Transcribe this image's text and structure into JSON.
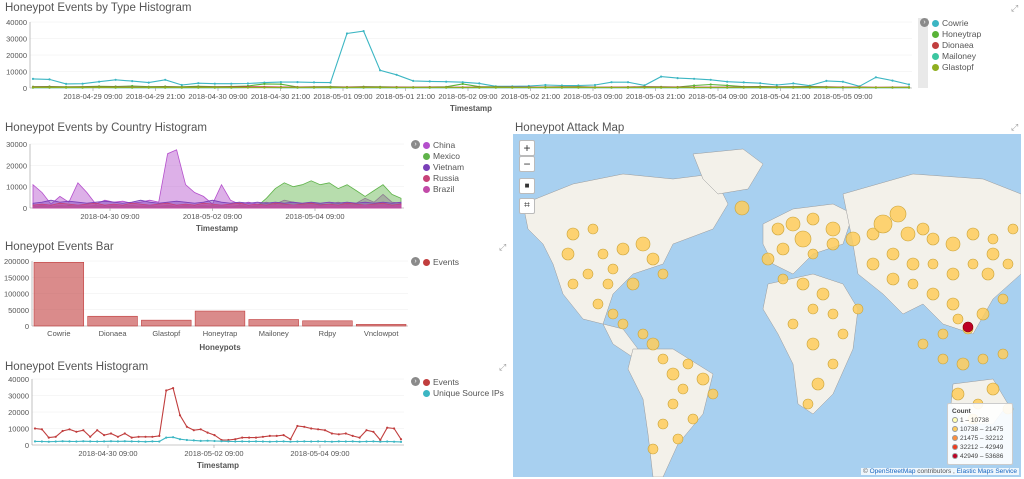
{
  "panels": {
    "type_hist": {
      "title": "Honeypot Events by Type Histogram",
      "legend": [
        {
          "label": "Cowrie",
          "color": "#3cb6c3"
        },
        {
          "label": "Honeytrap",
          "color": "#59b337"
        },
        {
          "label": "Dionaea",
          "color": "#c13e3e"
        },
        {
          "label": "Mailoney",
          "color": "#3cc6a0"
        },
        {
          "label": "Glastopf",
          "color": "#8fae1f"
        }
      ]
    },
    "country_hist": {
      "title": "Honeypot Events by Country Histogram",
      "legend": [
        {
          "label": "China",
          "color": "#b44fcc"
        },
        {
          "label": "Mexico",
          "color": "#5fb34a"
        },
        {
          "label": "Vietnam",
          "color": "#7a3fb8"
        },
        {
          "label": "Russia",
          "color": "#c74278"
        },
        {
          "label": "Brazil",
          "color": "#c24ba8"
        }
      ]
    },
    "events_bar": {
      "title": "Honeypot Events Bar",
      "legend": [
        {
          "label": "Events",
          "color": "#c13e3e"
        }
      ]
    },
    "events_hist": {
      "title": "Honeypot Events Histogram",
      "legend": [
        {
          "label": "Events",
          "color": "#c13e3e"
        },
        {
          "label": "Unique Source IPs",
          "color": "#3cb6c3"
        }
      ]
    },
    "attack_map": {
      "title": "Honeypot Attack Map",
      "controls": {
        "zoom_in": "+",
        "zoom_out": "−",
        "draw": "■",
        "fit": "⌗"
      },
      "legend_title": "Count",
      "legend": [
        {
          "label": "1 – 10738",
          "color": "#ffffb2"
        },
        {
          "label": "10738 – 21475",
          "color": "#fecc5c"
        },
        {
          "label": "21475 – 32212",
          "color": "#fd8d3c"
        },
        {
          "label": "32212 – 42949",
          "color": "#f03b20"
        },
        {
          "label": "42949 – 53686",
          "color": "#bd0026"
        }
      ],
      "attribution": {
        "prefix": "©",
        "osm": "OpenStreetMap",
        "mid": "contributors ,",
        "ems": "Elastic Maps Service"
      }
    }
  },
  "chart_data": [
    {
      "type": "line",
      "title": "Honeypot Events by Type Histogram",
      "xlabel": "Timestamp",
      "ylabel": "",
      "ylim": [
        0,
        40000
      ],
      "yticks": [
        "40000",
        "30000",
        "20000",
        "10000",
        "0"
      ],
      "xticks": [
        "2018-04-29 09:00",
        "2018-04-29 21:00",
        "2018-04-30 09:00",
        "2018-04-30 21:00",
        "2018-05-01 09:00",
        "2018-05-01 21:00",
        "2018-05-02 09:00",
        "2018-05-02 21:00",
        "2018-05-03 09:00",
        "2018-05-03 21:00",
        "2018-05-04 09:00",
        "2018-05-04 21:00",
        "2018-05-05 09:00"
      ],
      "series": [
        {
          "name": "Cowrie",
          "values": [
            5500,
            5200,
            2500,
            2600,
            3800,
            5000,
            4200,
            3300,
            5000,
            1800,
            2900,
            2600,
            2600,
            2700,
            3300,
            3600,
            3600,
            3400,
            3300,
            33000,
            34500,
            10700,
            8000,
            4300,
            4000,
            3800,
            3500,
            2800,
            1000,
            1000,
            1200,
            1800,
            1500,
            1500,
            1800,
            3500,
            3500,
            1600,
            6900,
            6000,
            5600,
            5000,
            3800,
            3400,
            2900,
            1800,
            2800,
            1400,
            4300,
            3800,
            1000,
            6500,
            4500,
            2100
          ]
        },
        {
          "name": "Honeytrap",
          "values": [
            800,
            900,
            700,
            800,
            1000,
            900,
            1200,
            800,
            900,
            700,
            1000,
            800,
            900,
            1200,
            2500,
            2300,
            600,
            700,
            800,
            600,
            800,
            700,
            600,
            500,
            600,
            700,
            2500,
            800,
            700,
            600,
            500,
            600,
            700,
            800,
            500,
            400,
            600,
            800,
            700,
            600,
            1500,
            2100,
            1600,
            800,
            900,
            700,
            800,
            900,
            700,
            500,
            600,
            300,
            400,
            500
          ]
        },
        {
          "name": "Dionaea",
          "values": [
            500,
            500,
            400,
            500,
            600,
            500,
            500,
            400,
            500,
            400,
            500,
            500,
            600,
            700,
            700,
            600,
            500,
            500,
            400,
            500,
            500,
            400,
            500,
            400,
            500,
            400,
            500,
            500,
            400,
            500,
            500,
            400,
            500,
            500,
            400,
            500,
            500,
            600,
            500,
            500,
            500,
            500,
            500,
            500,
            500,
            500,
            500,
            500,
            500,
            500,
            500,
            400,
            400,
            400
          ]
        },
        {
          "name": "Mailoney",
          "values": [
            200,
            200,
            200,
            200,
            300,
            200,
            200,
            200,
            200,
            200,
            200,
            200,
            200,
            300,
            300,
            200,
            200,
            200,
            200,
            200,
            200,
            200,
            200,
            200,
            200,
            200,
            200,
            200,
            200,
            200,
            200,
            200,
            200,
            200,
            200,
            200,
            200,
            200,
            200,
            200,
            200,
            200,
            200,
            200,
            200,
            200,
            200,
            200,
            200,
            200,
            200,
            200,
            200,
            200
          ]
        },
        {
          "name": "Glastopf",
          "values": [
            300,
            300,
            300,
            300,
            400,
            300,
            300,
            300,
            300,
            300,
            300,
            300,
            300,
            300,
            300,
            300,
            300,
            300,
            300,
            300,
            300,
            300,
            300,
            300,
            300,
            300,
            300,
            300,
            300,
            300,
            300,
            300,
            300,
            300,
            300,
            300,
            300,
            300,
            300,
            300,
            300,
            300,
            300,
            300,
            300,
            300,
            300,
            300,
            300,
            300,
            300,
            300,
            300,
            300
          ]
        }
      ]
    },
    {
      "type": "area",
      "title": "Honeypot Events by Country Histogram",
      "xlabel": "Timestamp",
      "ylabel": "",
      "ylim": [
        0,
        33000
      ],
      "yticks": [
        "30000",
        "20000",
        "10000",
        "0"
      ],
      "xticks": [
        "2018-04-30 09:00",
        "2018-05-02 09:00",
        "2018-05-04 09:00"
      ],
      "series": [
        {
          "name": "China",
          "values": [
            12000,
            8000,
            2000,
            6000,
            3000,
            13000,
            8000,
            2000,
            4000,
            3000,
            3500,
            2500,
            3000,
            4000,
            3000,
            28000,
            30000,
            12000,
            8000,
            6000,
            2000,
            12000,
            4000,
            2000,
            3000,
            2000,
            3000,
            2000,
            4000,
            3000,
            2000,
            2500,
            2000,
            2000,
            3000,
            2000,
            2500,
            5000,
            3000,
            7000,
            3000,
            2500
          ]
        },
        {
          "name": "Mexico",
          "values": [
            1000,
            1200,
            1100,
            1000,
            1300,
            1200,
            1000,
            1200,
            1100,
            1000,
            1200,
            1100,
            1000,
            1200,
            1000,
            1100,
            1000,
            1200,
            1100,
            1000,
            1200,
            1100,
            1000,
            1200,
            1100,
            1000,
            5000,
            10000,
            13000,
            11000,
            12000,
            14000,
            12000,
            13000,
            10000,
            12000,
            9000,
            6000,
            9000,
            12000,
            7000,
            5000
          ]
        },
        {
          "name": "Vietnam",
          "values": [
            2500,
            3000,
            4000,
            3000,
            3500,
            3000,
            2500,
            3000,
            3500,
            3000,
            2500,
            3000,
            4000,
            3000,
            2500,
            3000,
            3500,
            3000,
            2500,
            3000,
            4000,
            3000,
            2500,
            3000,
            2500,
            3000,
            2500,
            3000,
            2500,
            3000,
            2500,
            3000,
            2500,
            3000,
            2500,
            3000,
            2500,
            3000,
            2500,
            3000,
            2500,
            3000
          ]
        },
        {
          "name": "Russia",
          "values": [
            1500,
            2000,
            1500,
            2500,
            2000,
            1500,
            2000,
            2500,
            1500,
            2000,
            1500,
            2500,
            2000,
            1500,
            2000,
            2500,
            1500,
            2000,
            1500,
            2500,
            2000,
            1500,
            2000,
            2500,
            1500,
            2000,
            1500,
            2500,
            2000,
            1500,
            2000,
            2500,
            1500,
            2000,
            1500,
            2500,
            2000,
            1500,
            2000,
            2500,
            1500,
            2000
          ]
        },
        {
          "name": "Brazil",
          "values": [
            1000,
            1500,
            1000,
            1500,
            1000,
            1500,
            1000,
            1500,
            1000,
            1500,
            1000,
            1500,
            1000,
            1500,
            1000,
            1500,
            1000,
            1500,
            1000,
            1500,
            1000,
            1500,
            1000,
            1500,
            1000,
            1500,
            1000,
            1500,
            1000,
            1500,
            1000,
            1500,
            1000,
            1500,
            1000,
            1500,
            1000,
            1500,
            1000,
            1500,
            1000,
            1500
          ]
        }
      ]
    },
    {
      "type": "bar",
      "title": "Honeypot Events Bar",
      "xlabel": "Honeypots",
      "ylabel": "",
      "ylim": [
        0,
        200000
      ],
      "yticks": [
        "200000",
        "150000",
        "100000",
        "50000",
        "0"
      ],
      "categories": [
        "Cowrie",
        "Dionaea",
        "Glastopf",
        "Honeytrap",
        "Mailoney",
        "Rdpy",
        "Vnclowpot"
      ],
      "series": [
        {
          "name": "Events",
          "values": [
            196000,
            30000,
            18000,
            46000,
            20000,
            16000,
            5000
          ]
        }
      ]
    },
    {
      "type": "line",
      "title": "Honeypot Events Histogram",
      "xlabel": "Timestamp",
      "ylabel": "",
      "ylim": [
        0,
        40000
      ],
      "yticks": [
        "40000",
        "30000",
        "20000",
        "10000",
        "0"
      ],
      "xticks": [
        "2018-04-30 09:00",
        "2018-05-02 09:00",
        "2018-05-04 09:00"
      ],
      "series": [
        {
          "name": "Events",
          "values": [
            10000,
            9500,
            4500,
            5000,
            8500,
            9500,
            8000,
            9000,
            5000,
            9000,
            6000,
            7000,
            5000,
            7000,
            4500,
            5000,
            5000,
            5000,
            5500,
            33000,
            34500,
            18000,
            11000,
            9000,
            9500,
            7500,
            6000,
            3000,
            3000,
            3500,
            4500,
            4500,
            4500,
            5000,
            5500,
            5500,
            6000,
            3500,
            11500,
            11000,
            10000,
            9500,
            9000,
            7000,
            6500,
            7000,
            5500,
            4500,
            9000,
            8000,
            3000,
            10500,
            10000,
            3500
          ]
        },
        {
          "name": "Unique Source IPs",
          "values": [
            2200,
            2100,
            2000,
            2100,
            2300,
            2200,
            2100,
            2300,
            2200,
            2100,
            2200,
            2300,
            2200,
            2300,
            2200,
            2100,
            2000,
            2200,
            2100,
            4500,
            4700,
            3500,
            3000,
            2800,
            2500,
            2600,
            2400,
            2300,
            2200,
            2100,
            2200,
            2100,
            2200,
            2100,
            2000,
            2100,
            2200,
            2000,
            2100,
            2200,
            2100,
            2200,
            2100,
            2000,
            2200,
            2100,
            2200,
            2000,
            2100,
            2200,
            2000,
            2100,
            2000,
            1900
          ]
        }
      ]
    }
  ]
}
